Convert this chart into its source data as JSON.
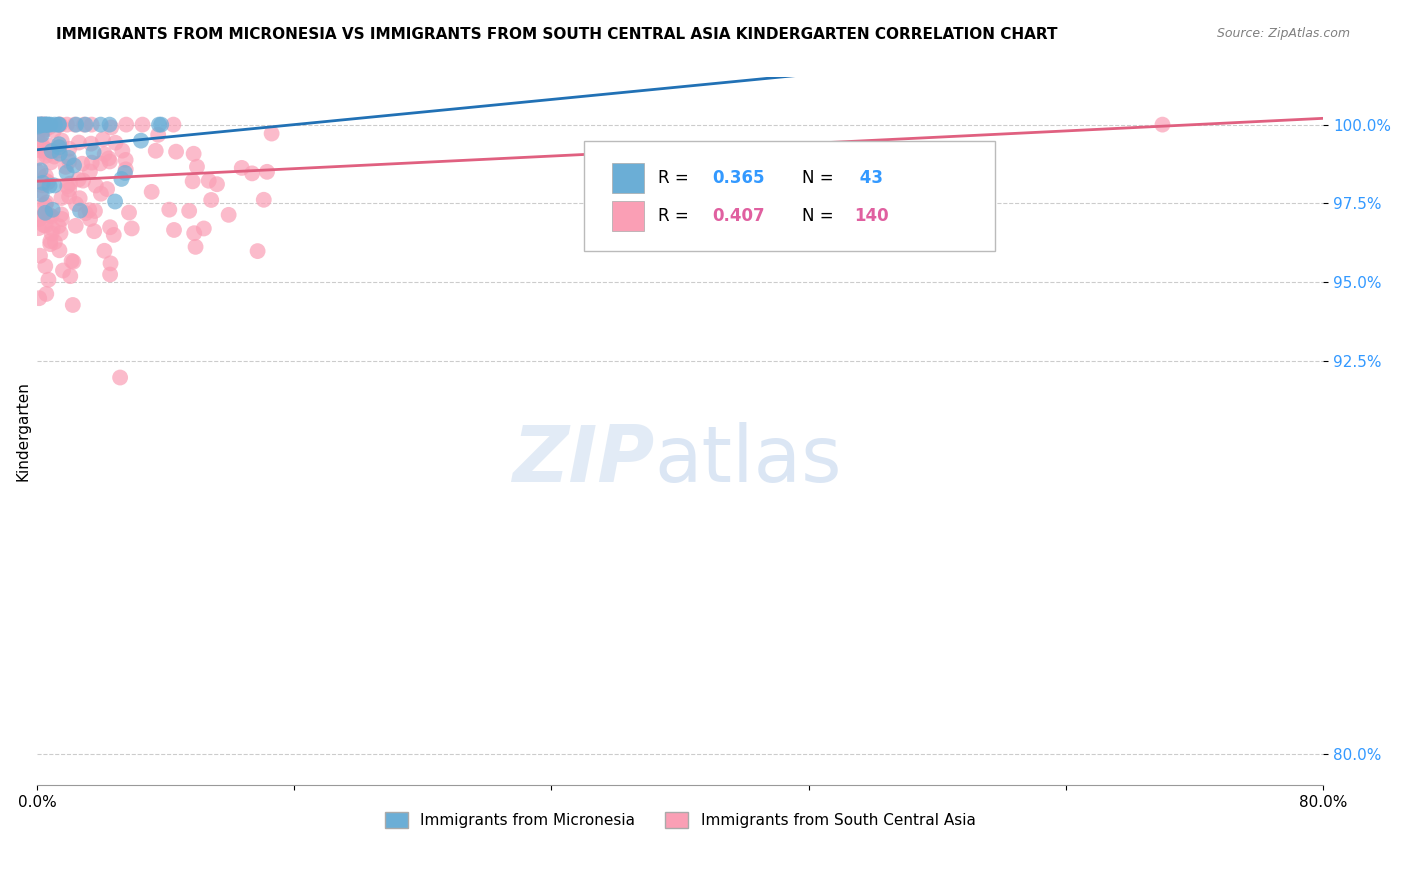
{
  "title": "IMMIGRANTS FROM MICRONESIA VS IMMIGRANTS FROM SOUTH CENTRAL ASIA KINDERGARTEN CORRELATION CHART",
  "source": "Source: ZipAtlas.com",
  "ylabel": "Kindergarten",
  "xlim": [
    0.0,
    80.0
  ],
  "ylim": [
    79.0,
    101.5
  ],
  "yticks": [
    80.0,
    92.5,
    95.0,
    97.5,
    100.0
  ],
  "ytick_labels": [
    "80.0%",
    "92.5%",
    "95.0%",
    "97.5%",
    "100.0%"
  ],
  "xticks": [
    0.0,
    16.0,
    32.0,
    48.0,
    64.0,
    80.0
  ],
  "xtick_labels": [
    "0.0%",
    "",
    "",
    "",
    "",
    "80.0%"
  ],
  "blue_R": 0.365,
  "blue_N": 43,
  "pink_R": 0.407,
  "pink_N": 140,
  "blue_color": "#6baed6",
  "pink_color": "#fa9fb5",
  "blue_line_color": "#2171b5",
  "pink_line_color": "#e06080",
  "legend_label_blue": "Immigrants from Micronesia",
  "legend_label_pink": "Immigrants from South Central Asia"
}
